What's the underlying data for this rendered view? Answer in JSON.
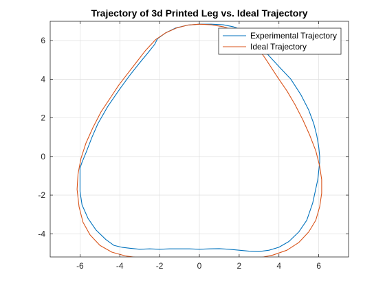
{
  "chart_data": {
    "type": "line",
    "title": "Trajectory of 3d Printed Leg vs. Ideal Trajectory",
    "xlabel": "",
    "ylabel": "",
    "xlim": [
      -7.5,
      7.5
    ],
    "ylim": [
      -5.2,
      7
    ],
    "xticks": [
      -6,
      -4,
      -2,
      0,
      2,
      4,
      6
    ],
    "yticks": [
      -4,
      -2,
      0,
      2,
      4,
      6
    ],
    "grid": true,
    "legend_position": "top-right",
    "series": [
      {
        "name": "Experimental Trajectory",
        "color": "#0072BD",
        "x": [
          -2.1,
          -2.25,
          -2.6,
          -3.0,
          -3.5,
          -4.0,
          -4.6,
          -5.1,
          -5.4,
          -5.7,
          -5.9,
          -6.0,
          -6.0,
          -6.0,
          -5.9,
          -5.6,
          -5.2,
          -4.7,
          -4.3,
          -3.9,
          -3.5,
          -3.0,
          -2.5,
          -2.0,
          -1.5,
          -1.0,
          -0.5,
          0.0,
          0.5,
          1.0,
          1.5,
          2.0,
          2.5,
          3.0,
          3.5,
          4.0,
          4.5,
          5.0,
          5.4,
          5.7,
          5.95,
          6.05,
          6.05,
          6.0,
          5.9,
          5.75,
          5.5,
          5.1,
          4.6,
          4.05,
          3.6,
          3.25,
          2.9,
          2.55,
          2.15,
          1.7,
          1.2,
          0.6,
          0.0,
          -0.6,
          -1.2,
          -1.7,
          -2.1
        ],
        "y": [
          6.1,
          5.8,
          5.35,
          4.85,
          4.2,
          3.5,
          2.6,
          1.7,
          1.0,
          0.2,
          -0.3,
          -0.6,
          -1.2,
          -1.8,
          -2.5,
          -3.2,
          -3.8,
          -4.3,
          -4.6,
          -4.7,
          -4.75,
          -4.8,
          -4.78,
          -4.8,
          -4.78,
          -4.78,
          -4.78,
          -4.8,
          -4.78,
          -4.77,
          -4.8,
          -4.85,
          -4.9,
          -4.92,
          -4.85,
          -4.7,
          -4.4,
          -3.9,
          -3.3,
          -2.4,
          -1.2,
          -0.3,
          0.0,
          0.5,
          1.1,
          1.7,
          2.4,
          3.2,
          4.0,
          4.6,
          5.1,
          5.5,
          5.95,
          6.3,
          6.55,
          6.72,
          6.82,
          6.85,
          6.85,
          6.8,
          6.65,
          6.4,
          6.1
        ]
      },
      {
        "name": "Ideal Trajectory",
        "color": "#D95319",
        "x": [
          0.0,
          0.6,
          1.2,
          1.7,
          2.2,
          2.6,
          2.95,
          3.3,
          3.65,
          4.0,
          4.4,
          4.8,
          5.2,
          5.55,
          5.85,
          6.05,
          6.15,
          6.15,
          6.05,
          5.85,
          5.5,
          5.0,
          4.4,
          3.7,
          3.0,
          2.3,
          1.6,
          0.8,
          0.0,
          -0.8,
          -1.6,
          -2.3,
          -3.0,
          -3.7,
          -4.4,
          -5.0,
          -5.5,
          -5.85,
          -6.05,
          -6.15,
          -6.1,
          -5.95,
          -5.7,
          -5.35,
          -4.95,
          -4.5,
          -4.05,
          -3.6,
          -3.15,
          -2.7,
          -2.2,
          -1.7,
          -1.15,
          -0.6,
          0.0
        ],
        "y": [
          6.85,
          6.82,
          6.72,
          6.55,
          6.3,
          6.0,
          5.6,
          5.1,
          4.55,
          4.0,
          3.4,
          2.7,
          1.9,
          1.1,
          0.3,
          -0.5,
          -1.2,
          -1.9,
          -2.6,
          -3.3,
          -3.9,
          -4.45,
          -4.85,
          -5.1,
          -5.25,
          -5.3,
          -5.32,
          -5.33,
          -5.33,
          -5.33,
          -5.32,
          -5.3,
          -5.25,
          -5.15,
          -4.95,
          -4.6,
          -4.05,
          -3.4,
          -2.6,
          -1.7,
          -0.9,
          -0.1,
          0.7,
          1.5,
          2.3,
          3.0,
          3.7,
          4.3,
          4.9,
          5.5,
          6.05,
          6.4,
          6.65,
          6.8,
          6.85
        ]
      }
    ]
  }
}
